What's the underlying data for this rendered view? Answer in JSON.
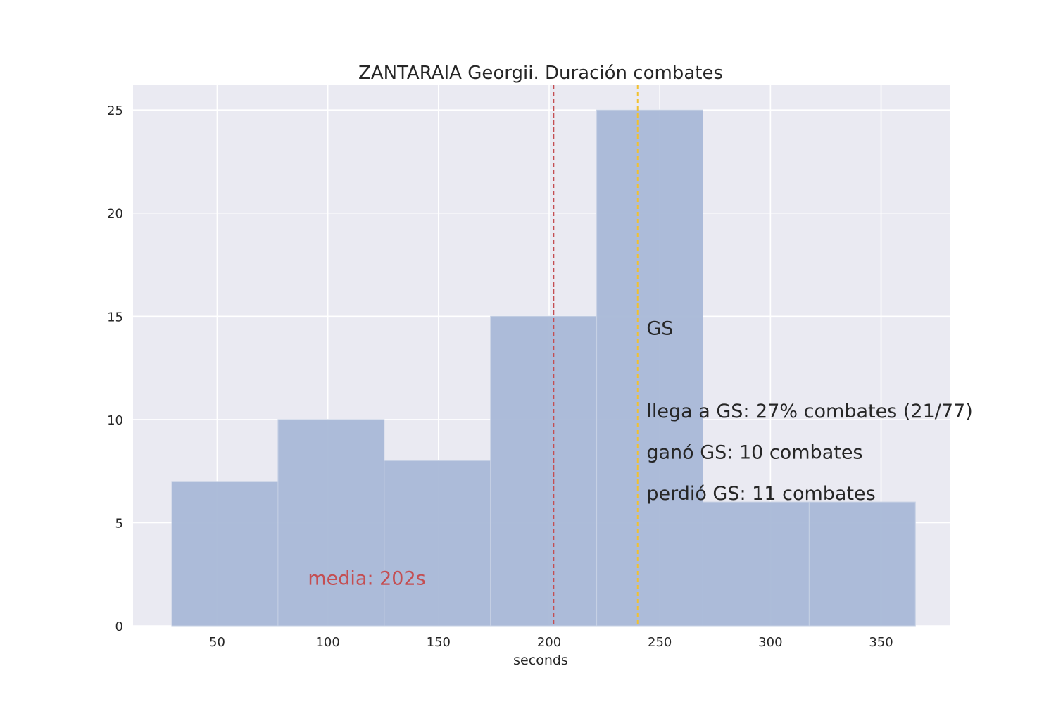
{
  "chart_data": {
    "type": "bar",
    "title": "ZANTARAIA Georgii. Duración combates",
    "xlabel": "seconds",
    "ylabel": "",
    "xlim": [
      12,
      381
    ],
    "ylim": [
      0,
      26.2
    ],
    "xticks": [
      50,
      100,
      150,
      200,
      250,
      300,
      350
    ],
    "yticks": [
      0,
      5,
      10,
      15,
      20,
      25
    ],
    "grid": true,
    "bins": [
      {
        "start": 29.5,
        "end": 77.5,
        "count": 7
      },
      {
        "start": 77.5,
        "end": 125.5,
        "count": 10
      },
      {
        "start": 125.5,
        "end": 173.5,
        "count": 8
      },
      {
        "start": 173.5,
        "end": 221.5,
        "count": 15
      },
      {
        "start": 221.5,
        "end": 269.5,
        "count": 25
      },
      {
        "start": 269.5,
        "end": 317.5,
        "count": 6
      },
      {
        "start": 317.5,
        "end": 365.5,
        "count": 6
      }
    ],
    "vlines": [
      {
        "x": 202,
        "color": "#c44e52",
        "style": "dashed"
      },
      {
        "x": 240,
        "color": "#f2c12e",
        "style": "dashed"
      }
    ],
    "annotations": [
      {
        "text": "media: 202s",
        "x": 91,
        "y": 2.0,
        "color": "#c44e52"
      },
      {
        "text": "GS",
        "x": 244,
        "y": 14.1,
        "color": "#262626"
      },
      {
        "text": "llega a GS: 27% combates (21/77)",
        "x": 244,
        "y": 10.1,
        "color": "#262626"
      },
      {
        "text": "ganó GS: 10 combates",
        "x": 244,
        "y": 8.1,
        "color": "#262626"
      },
      {
        "text": "perdió GS: 11 combates",
        "x": 244,
        "y": 6.1,
        "color": "#262626"
      }
    ],
    "colors": {
      "background": "#eaeaf2",
      "bar": "#a9b8d7",
      "grid": "#ffffff",
      "text": "#262626"
    }
  }
}
